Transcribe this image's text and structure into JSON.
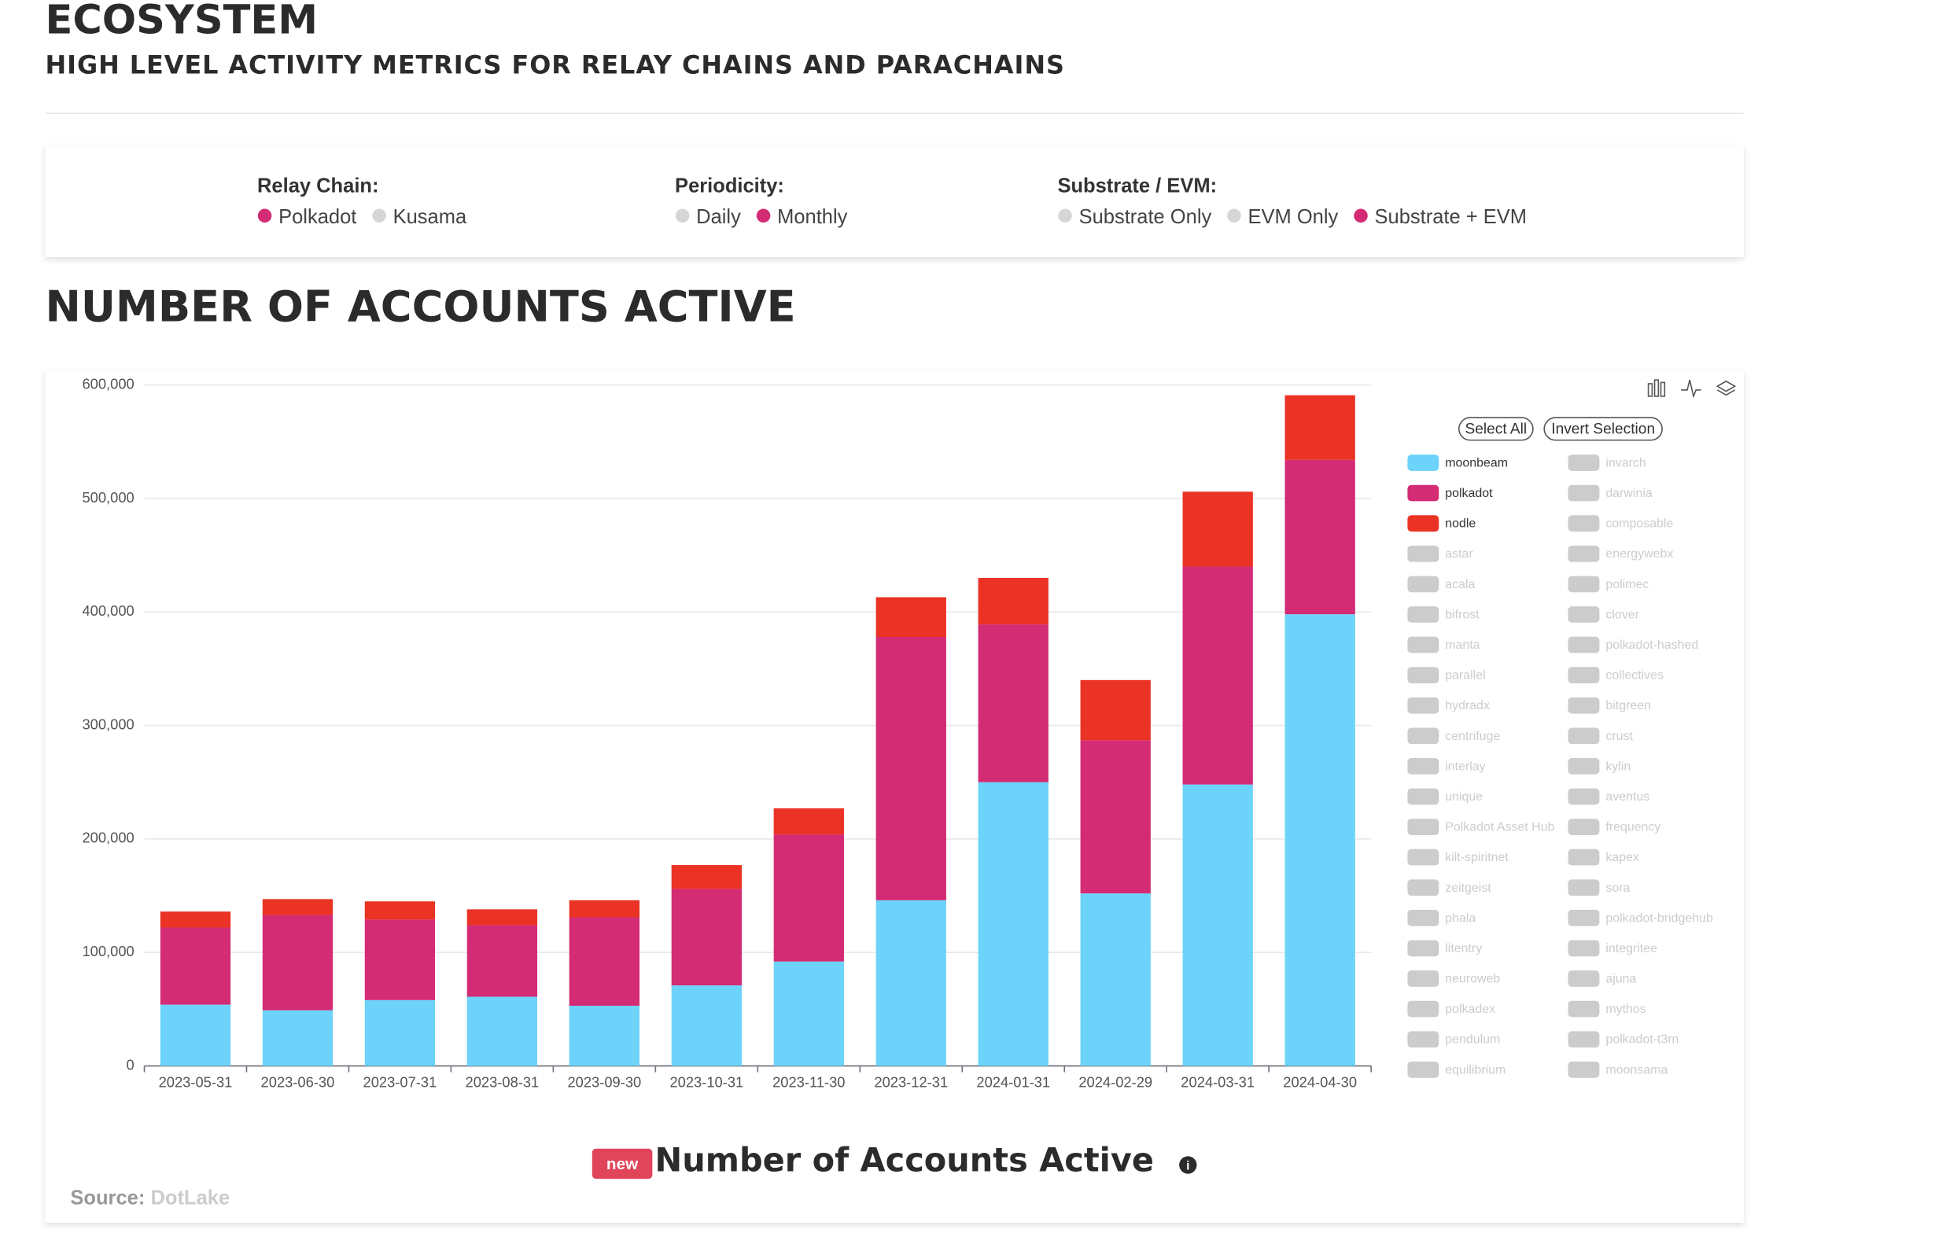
{
  "header": {
    "title": "ECOSYSTEM",
    "subtitle": "HIGH LEVEL ACTIVITY METRICS FOR RELAY CHAINS AND PARACHAINS"
  },
  "filters": [
    {
      "label": "Relay Chain:",
      "options": [
        {
          "name": "Polkadot",
          "selected": true
        },
        {
          "name": "Kusama",
          "selected": false
        }
      ]
    },
    {
      "label": "Periodicity:",
      "options": [
        {
          "name": "Daily",
          "selected": false
        },
        {
          "name": "Monthly",
          "selected": true
        }
      ]
    },
    {
      "label": "Substrate / EVM:",
      "options": [
        {
          "name": "Substrate Only",
          "selected": false
        },
        {
          "name": "EVM Only",
          "selected": false
        },
        {
          "name": "Substrate + EVM",
          "selected": true
        }
      ]
    }
  ],
  "section_title": "NUMBER OF ACCOUNTS ACTIVE",
  "chart_data": {
    "type": "stacked-bar",
    "title": "Number of Accounts Active",
    "badge": "new",
    "categories": [
      "2023-05-31",
      "2023-06-30",
      "2023-07-31",
      "2023-08-31",
      "2023-09-30",
      "2023-10-31",
      "2023-11-30",
      "2023-12-31",
      "2024-01-31",
      "2024-02-29",
      "2024-03-31",
      "2024-04-30"
    ],
    "series": [
      {
        "name": "moonbeam",
        "color": "#6dd3fa",
        "values": [
          54000,
          49000,
          58000,
          61000,
          53000,
          71000,
          92000,
          146000,
          250000,
          152000,
          248000,
          398000
        ]
      },
      {
        "name": "polkadot",
        "color": "#d42b75",
        "values": [
          68000,
          84000,
          71000,
          63000,
          78000,
          85000,
          112000,
          232000,
          139000,
          135000,
          192000,
          136000
        ]
      },
      {
        "name": "nodle",
        "color": "#ea3324",
        "values": [
          14000,
          14000,
          16000,
          14000,
          15000,
          21000,
          23000,
          35000,
          41000,
          53000,
          66000,
          57000
        ]
      }
    ],
    "legend_inactive": [
      "astar",
      "acala",
      "bifrost",
      "manta",
      "parallel",
      "hydradx",
      "centrifuge",
      "interlay",
      "unique",
      "Polkadot Asset Hub",
      "kilt-spiritnet",
      "zeitgeist",
      "phala",
      "litentry",
      "neuroweb",
      "polkadex",
      "pendulum",
      "equilibrium",
      "invarch",
      "darwinia",
      "composable",
      "energywebx",
      "polimec",
      "clover",
      "polkadot-hashed",
      "collectives",
      "bitgreen",
      "crust",
      "kylin",
      "aventus",
      "frequency",
      "kapex",
      "sora",
      "polkadot-bridgehub",
      "integritee",
      "ajuna",
      "mythos",
      "polkadot-t3rn",
      "moonsama"
    ],
    "legend_buttons": [
      "Select All",
      "Invert Selection"
    ],
    "ylim": [
      0,
      600000
    ],
    "yticks": [
      0,
      {
        "value": 100000,
        "label": "100,000"
      },
      {
        "value": 200000,
        "label": "200,000"
      },
      {
        "value": 300000,
        "label": "300,000"
      },
      {
        "value": 400000,
        "label": "400,000"
      },
      {
        "value": 500000,
        "label": "500,000"
      },
      {
        "value": 600000,
        "label": "600,000"
      }
    ],
    "grid": true
  },
  "source": {
    "label": "Source:",
    "name": "DotLake"
  }
}
